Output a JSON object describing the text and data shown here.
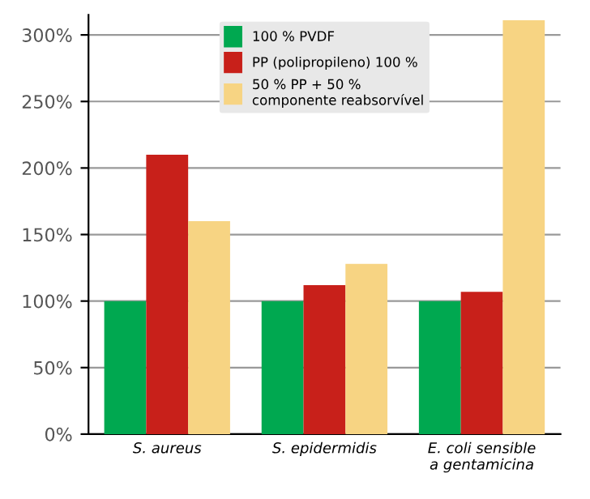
{
  "chart_data": {
    "type": "bar",
    "categories": [
      "S. aureus",
      "S. epidermidis",
      "E. coli sensible\na gentamicina"
    ],
    "series": [
      {
        "name": "100 % PVDF",
        "color": "#00a850",
        "values": [
          100,
          100,
          100
        ]
      },
      {
        "name": "PP (polipropileno) 100 %",
        "color": "#c8201a",
        "values": [
          210,
          112,
          107
        ]
      },
      {
        "name": "50 % PP + 50 %\ncomponente reabsorvível",
        "color": "#f7d483",
        "values": [
          160,
          128,
          311
        ]
      }
    ],
    "ylim": [
      0,
      315
    ],
    "yticks": [
      {
        "value": 0,
        "label": "0%"
      },
      {
        "value": 50,
        "label": "50%"
      },
      {
        "value": 100,
        "label": "100%"
      },
      {
        "value": 150,
        "label": "150%"
      },
      {
        "value": 200,
        "label": "200%"
      },
      {
        "value": 250,
        "label": "250%"
      },
      {
        "value": 300,
        "label": "300%"
      }
    ],
    "grid": "y",
    "legend": "top"
  }
}
